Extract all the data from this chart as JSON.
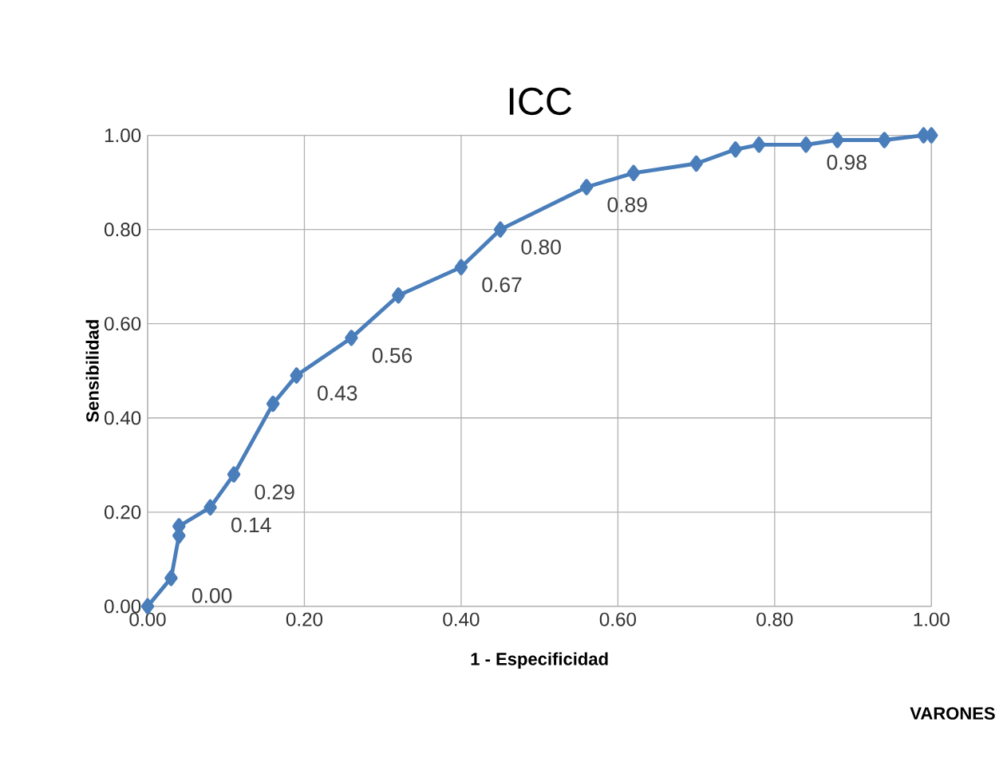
{
  "chart_data": {
    "type": "line",
    "title": "ICC",
    "xlabel": "1 - Especificidad",
    "ylabel": "Sensibilidad",
    "series": [
      {
        "color": "#4a7ebb",
        "x": [
          0,
          0.03,
          0.04,
          0.04,
          0.08,
          0.11,
          0.16,
          0.19,
          0.26,
          0.32,
          0.4,
          0.45,
          0.56,
          0.62,
          0.7,
          0.75,
          0.78,
          0.84,
          0.88,
          0.94,
          0.99,
          1.0
        ],
        "values": [
          0,
          0.06,
          0.15,
          0.17,
          0.21,
          0.28,
          0.43,
          0.49,
          0.57,
          0.66,
          0.72,
          0.8,
          0.89,
          0.92,
          0.94,
          0.97,
          0.98,
          0.98,
          0.99,
          0.99,
          1.0,
          1.0
        ]
      }
    ],
    "xlim": [
      0,
      1
    ],
    "ylim": [
      0,
      1
    ],
    "xticks": [
      {
        "value": 0,
        "label": "0.00"
      },
      {
        "value": 0.2,
        "label": "0.20"
      },
      {
        "value": 0.4,
        "label": "0.40"
      },
      {
        "value": 0.6,
        "label": "0.60"
      },
      {
        "value": 0.8,
        "label": "0.80"
      },
      {
        "value": 1,
        "label": "1.00"
      }
    ],
    "yticks": [
      {
        "value": 0,
        "label": "0.00"
      },
      {
        "value": 0.2,
        "label": "0.20"
      },
      {
        "value": 0.4,
        "label": "0.40"
      },
      {
        "value": 0.6,
        "label": "0.60"
      },
      {
        "value": 0.8,
        "label": "0.80"
      },
      {
        "value": 1,
        "label": "1.00"
      }
    ],
    "grid": true,
    "marker": "diamond",
    "line_style": "solid",
    "annotations": [
      {
        "text": "0.00",
        "x": 0.03,
        "y": 0.06
      },
      {
        "text": "0.14",
        "x": 0.08,
        "y": 0.21
      },
      {
        "text": "0.29",
        "x": 0.11,
        "y": 0.28
      },
      {
        "text": "0.43",
        "x": 0.19,
        "y": 0.49
      },
      {
        "text": "0.56",
        "x": 0.26,
        "y": 0.57
      },
      {
        "text": "0.67",
        "x": 0.4,
        "y": 0.72
      },
      {
        "text": "0.80",
        "x": 0.45,
        "y": 0.8
      },
      {
        "text": "0.89",
        "x": 0.56,
        "y": 0.89
      },
      {
        "text": "0.98",
        "x": 0.84,
        "y": 0.98
      },
      "VARONES"
    ]
  }
}
